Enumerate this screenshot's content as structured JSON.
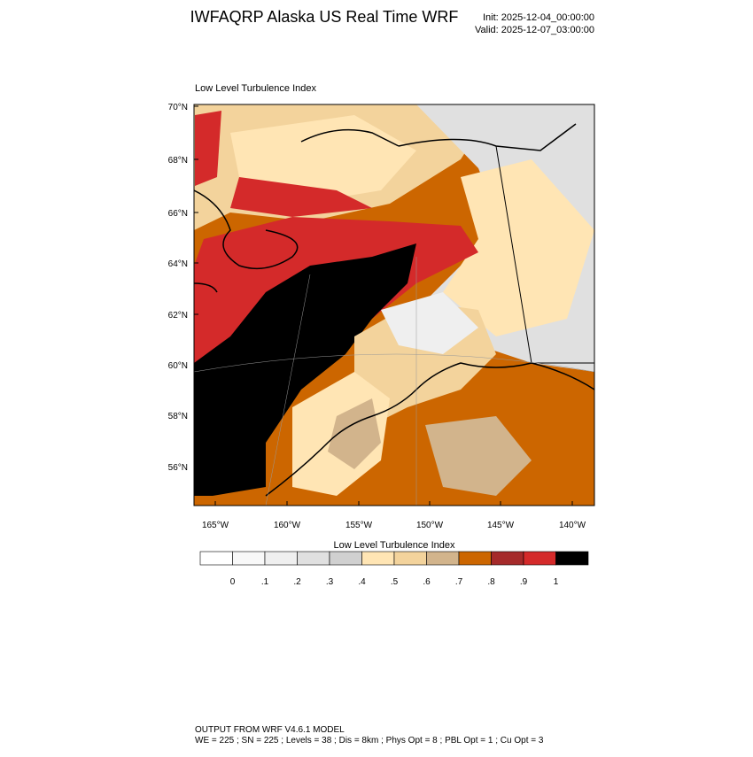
{
  "header": {
    "title": "IWFAQRP Alaska US Real Time WRF",
    "init": "Init: 2025-12-04_00:00:00",
    "valid": "Valid: 2025-12-07_03:00:00"
  },
  "map": {
    "title": "Low Level Turbulence Index",
    "lat_labels": [
      "70°N",
      "68°N",
      "66°N",
      "64°N",
      "62°N",
      "60°N",
      "58°N",
      "56°N"
    ],
    "lon_labels": [
      "165°W",
      "160°W",
      "155°W",
      "150°W",
      "145°W",
      "140°W"
    ]
  },
  "colorbar": {
    "title": "Low Level Turbulence Index",
    "colors": [
      "#ffffff",
      "#f8f8f8",
      "#efefef",
      "#e0e0e0",
      "#d0d0d0",
      "#ffe5b4",
      "#f3d39c",
      "#d2b48c",
      "#cc6600",
      "#a52a2a",
      "#d42a2a",
      "#000000"
    ],
    "levels": [
      0,
      {
        "value": 0.1,
        "label": ".1"
      },
      {
        "value": 0.2,
        "label": ".2"
      },
      {
        "value": 0.3,
        "label": ".3"
      },
      {
        "value": 0.4,
        "label": ".4"
      },
      {
        "value": 0.5,
        "label": ".5"
      },
      {
        "value": 0.6,
        "label": ".6"
      },
      {
        "value": 0.7,
        "label": ".7"
      },
      {
        "value": 0.8,
        "label": ".8"
      },
      {
        "value": 0.9,
        "label": ".9"
      },
      1
    ]
  },
  "footer": {
    "line1": "OUTPUT FROM WRF V4.6.1 MODEL",
    "line2": "WE = 225 ; SN = 225 ; Levels = 38 ; Dis = 8km ; Phys Opt = 8 ; PBL Opt = 1 ; Cu Opt = 3"
  }
}
